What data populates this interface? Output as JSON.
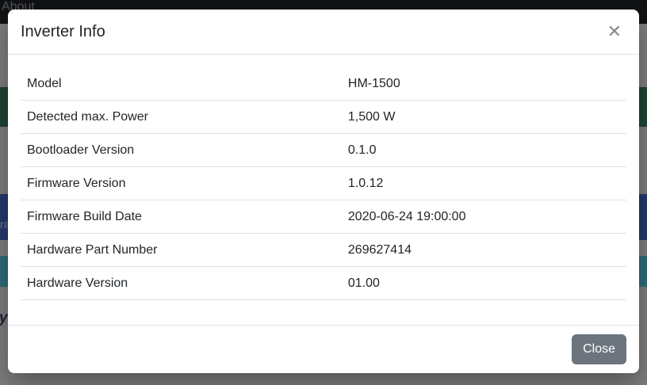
{
  "background_page": {
    "navbar": {
      "visible_item_label": "About"
    },
    "blue_band_text_fragment": "ra",
    "heading_text_fragment": "y"
  },
  "modal": {
    "title": "Inverter Info",
    "close_icon_glyph": "✕",
    "table": {
      "rows": [
        {
          "label": "Model",
          "value": "HM-1500"
        },
        {
          "label": "Detected max. Power",
          "value": "1,500 W"
        },
        {
          "label": "Bootloader Version",
          "value": "0.1.0"
        },
        {
          "label": "Firmware Version",
          "value": "1.0.12"
        },
        {
          "label": "Firmware Build Date",
          "value": "2020-06-24 19:00:00"
        },
        {
          "label": "Hardware Part Number",
          "value": "269627414"
        },
        {
          "label": "Hardware Version",
          "value": "01.00"
        }
      ]
    },
    "footer": {
      "close_button_label": "Close"
    }
  },
  "colors": {
    "navbar_bg": "#212529",
    "backdrop": "rgba(0,0,0,0.5)",
    "green_band": "#3e8c68",
    "blue_band": "#4a74dc",
    "teal_band": "#5edcf2",
    "table_border": "#dee2e6",
    "text_primary": "#212529",
    "close_button_bg": "#6c757d"
  }
}
